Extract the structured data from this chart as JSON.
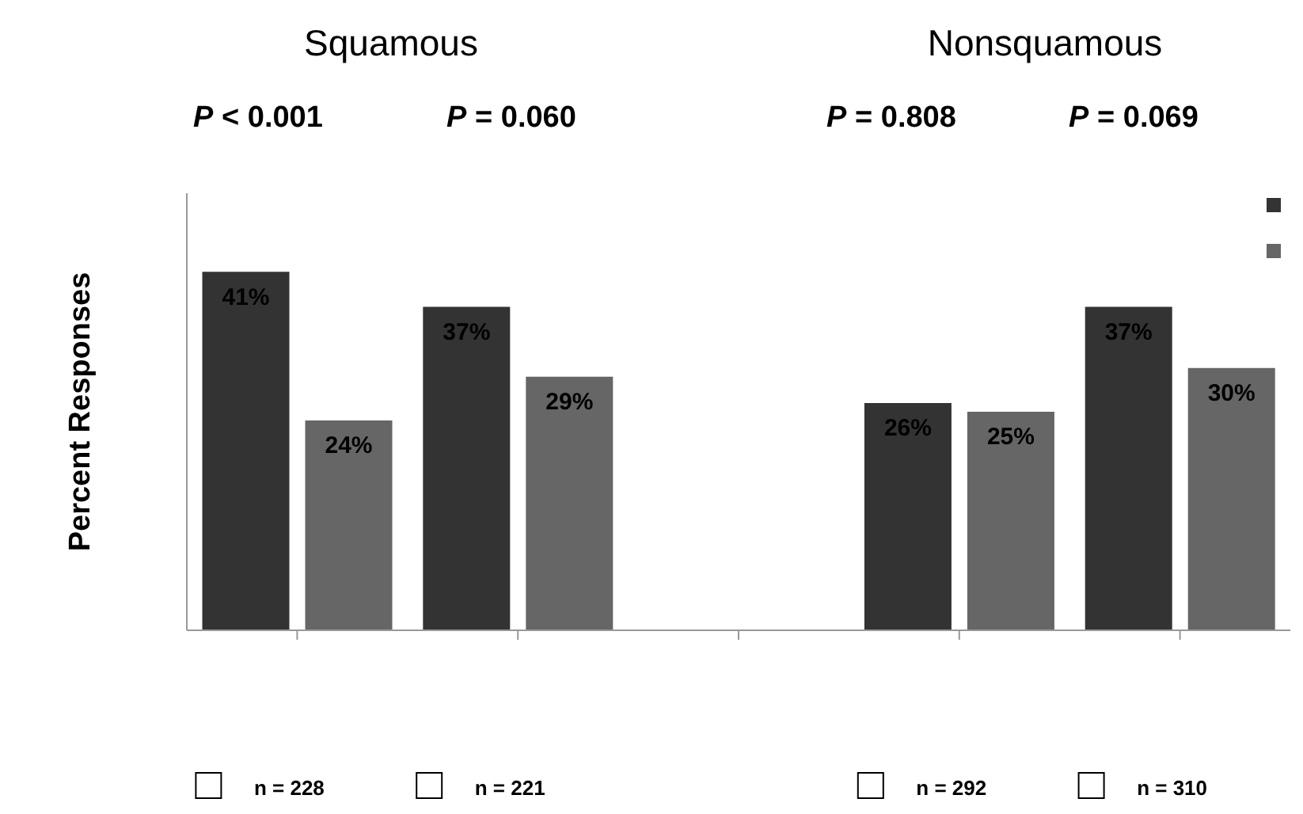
{
  "chart_data": {
    "type": "bar",
    "ylabel": "Percent Responses",
    "categories": [
      "n = 228",
      "n = 221",
      null,
      "n = 292",
      "n = 310"
    ],
    "series": [
      {
        "color": "#333333",
        "values": [
          41,
          37,
          null,
          26,
          37
        ],
        "value_labels": [
          "41%",
          "37%",
          null,
          "26%",
          "37%"
        ]
      },
      {
        "color": "#666666",
        "values": [
          24,
          29,
          null,
          25,
          30
        ],
        "value_labels": [
          "24%",
          "29%",
          null,
          "25%",
          "30%"
        ]
      }
    ],
    "ylim": [
      0,
      50
    ],
    "tick_labels": "x",
    "annotations": [
      "Squamous",
      "Nonsquamous",
      "P < 0.001",
      "P = 0.060",
      "P = 0.808",
      "P = 0.069"
    ]
  }
}
